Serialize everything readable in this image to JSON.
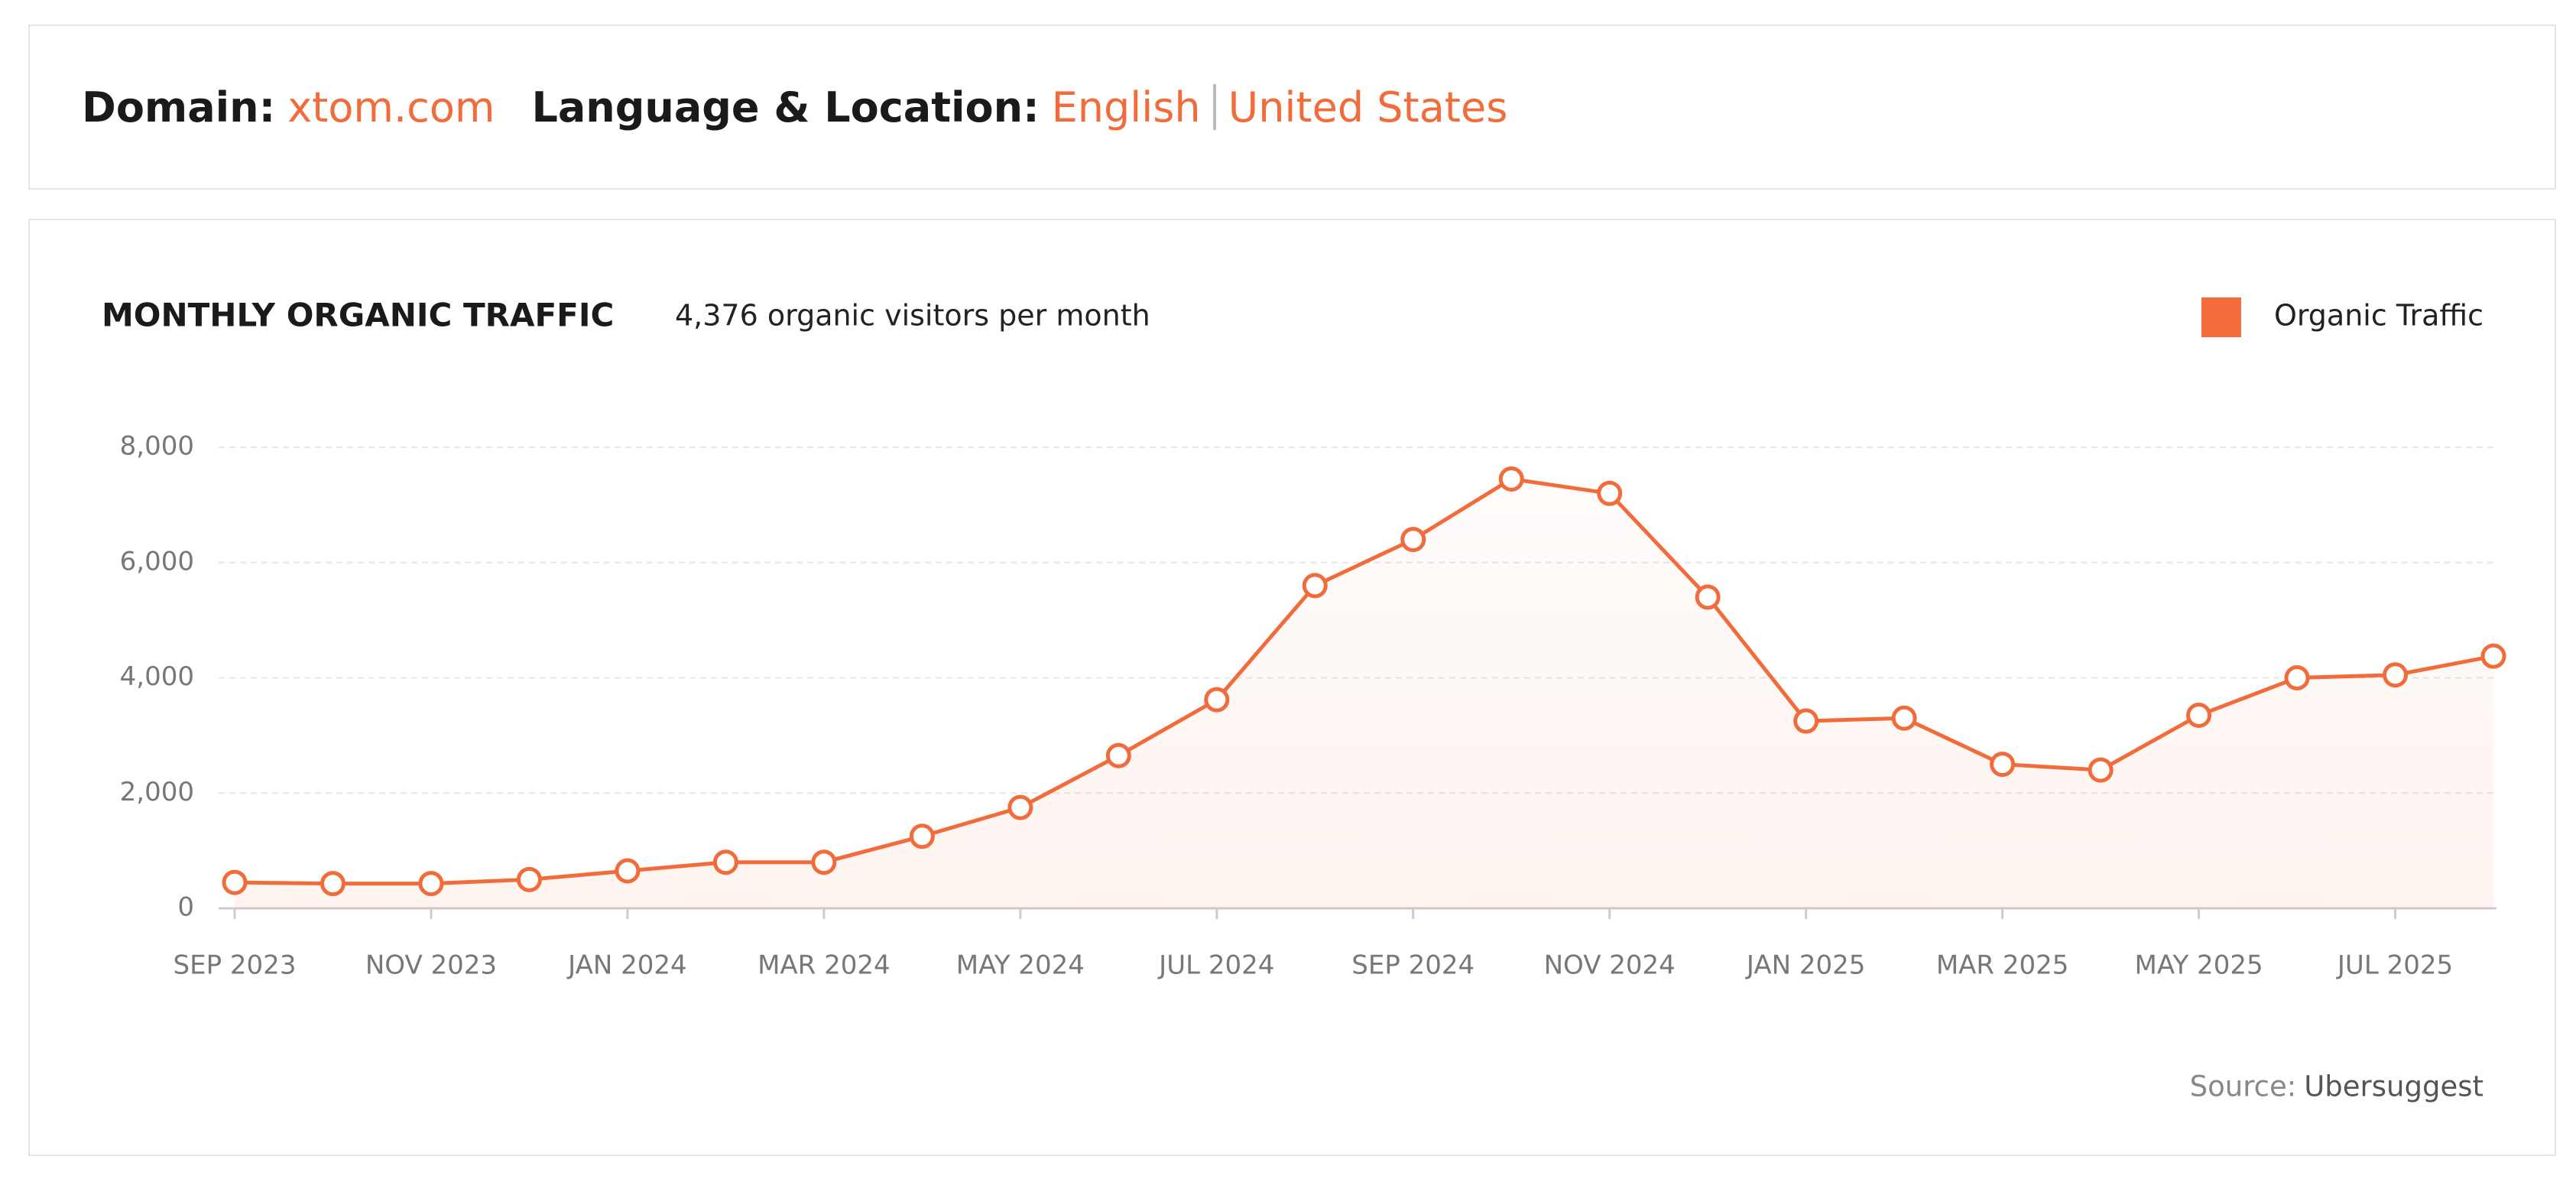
{
  "header": {
    "domain_label": "Domain:",
    "domain": "xtom.com",
    "location_label": "Language & Location:",
    "language": "English",
    "location": "United States"
  },
  "chart_data": {
    "type": "line",
    "title": "MONTHLY ORGANIC TRAFFIC",
    "subtitle": "4,376 organic visitors per month",
    "categories": [
      "SEP 2023",
      null,
      "NOV 2023",
      null,
      "JAN 2024",
      null,
      "MAR 2024",
      null,
      "MAY 2024",
      null,
      "JUL 2024",
      null,
      "SEP 2024",
      null,
      "NOV 2024",
      null,
      "JAN 2025",
      null,
      "MAR 2025",
      null,
      "MAY 2025",
      null,
      "JUL 2025",
      null
    ],
    "series": [
      {
        "name": "Organic Traffic",
        "color": "#f26b3a",
        "values": [
          450,
          430,
          430,
          500,
          650,
          800,
          800,
          1250,
          1750,
          2650,
          3620,
          5600,
          6400,
          7450,
          7200,
          5400,
          3250,
          3300,
          2500,
          2400,
          3350,
          4000,
          4050,
          4376
        ]
      }
    ],
    "ylim": [
      0,
      8000
    ],
    "yticks": [
      0,
      {
        "value": 2000,
        "label": "2,000"
      },
      {
        "value": 4000,
        "label": "4,000"
      },
      {
        "value": 6000,
        "label": "6,000"
      },
      {
        "value": 8000,
        "label": "8,000"
      }
    ],
    "grid": true,
    "legend": "top-right",
    "source_label": "Source:",
    "source": "Ubersuggest"
  }
}
